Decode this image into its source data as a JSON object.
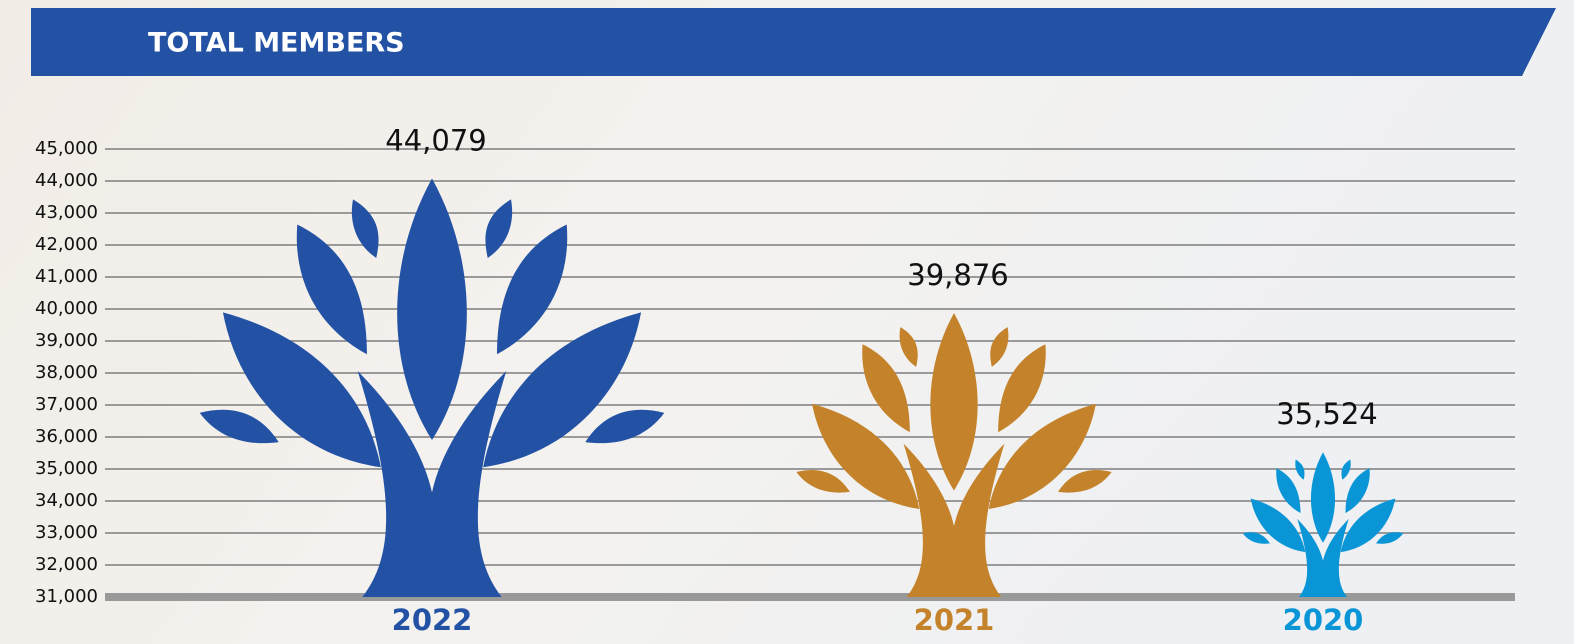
{
  "chart_data": {
    "type": "bar",
    "title": "TOTAL MEMBERS",
    "categories": [
      "2022",
      "2021",
      "2020"
    ],
    "values": [
      44079,
      39876,
      35524
    ],
    "value_labels": [
      "44,079",
      "39,876",
      "35,524"
    ],
    "colors": [
      "#2352a5",
      "#c4832b",
      "#0a96d6"
    ],
    "ylim": [
      31000,
      45000
    ],
    "yticks": [
      {
        "value": 31000,
        "label": "31,000"
      },
      {
        "value": 32000,
        "label": "32,000"
      },
      {
        "value": 33000,
        "label": "33,000"
      },
      {
        "value": 34000,
        "label": "34,000"
      },
      {
        "value": 35000,
        "label": "35,000"
      },
      {
        "value": 36000,
        "label": "36,000"
      },
      {
        "value": 37000,
        "label": "37,000"
      },
      {
        "value": 38000,
        "label": "38,000"
      },
      {
        "value": 39000,
        "label": "39,000"
      },
      {
        "value": 40000,
        "label": "40,000"
      },
      {
        "value": 41000,
        "label": "41,000"
      },
      {
        "value": 42000,
        "label": "42,000"
      },
      {
        "value": 43000,
        "label": "43,000"
      },
      {
        "value": 44000,
        "label": "44,000"
      },
      {
        "value": 45000,
        "label": "45,000"
      }
    ],
    "grid": true
  }
}
